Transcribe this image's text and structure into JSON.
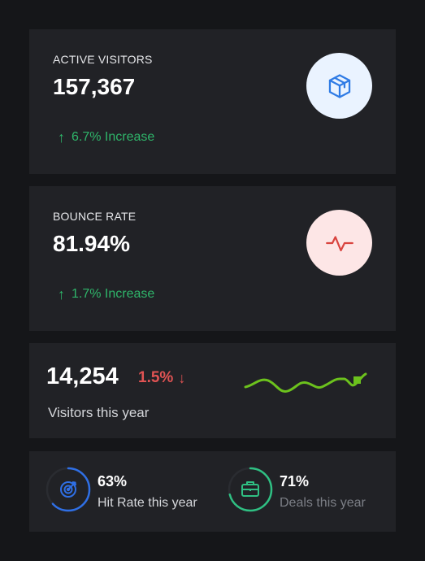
{
  "visitors_card": {
    "label": "ACTIVE VISITORS",
    "value": "157,367",
    "trend": "6.7% Increase",
    "icon": "package-box-icon",
    "icon_color": "#2f7be5"
  },
  "bounce_card": {
    "label": "BOUNCE RATE",
    "value": "81.94%",
    "trend": "1.7% Increase",
    "icon": "activity-pulse-icon",
    "icon_color": "#d9443f"
  },
  "year_card": {
    "value": "14,254",
    "change": "1.5%",
    "caption": "Visitors this year",
    "sparkline_color": "#6cc21d"
  },
  "rates_card": {
    "hit": {
      "value": "63%",
      "caption": "Hit Rate this year",
      "percent": 63,
      "icon": "target-icon",
      "color": "#2f6fe5"
    },
    "deals": {
      "value": "71%",
      "caption": "Deals this year",
      "percent": 71,
      "icon": "briefcase-icon",
      "color": "#2fc083"
    }
  },
  "colors": {
    "increase": "#2fb56a",
    "decrease": "#e05353",
    "card_bg": "#212226",
    "page_bg": "#151619"
  }
}
